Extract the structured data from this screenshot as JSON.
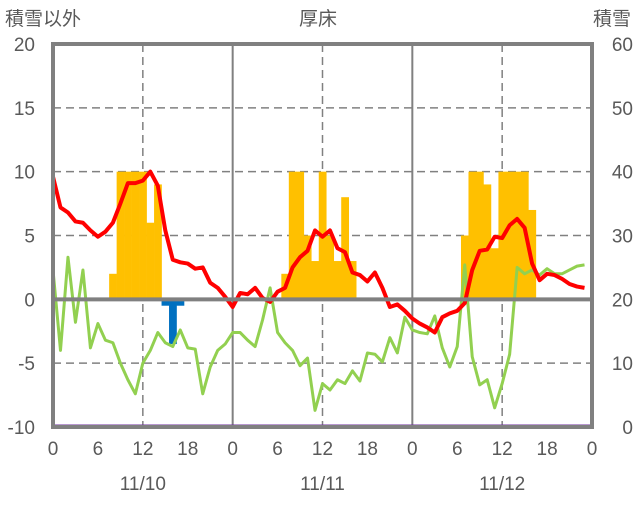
{
  "chart_data": {
    "type": "bar+line",
    "title": "厚床",
    "left_axis_label": "積雪以外",
    "right_axis_label": "積雪",
    "left_ylim": [
      -10,
      20
    ],
    "right_ylim": [
      0,
      60
    ],
    "left_ticks": [
      "20",
      "15",
      "10",
      "5",
      "0",
      "-5",
      "-10"
    ],
    "right_ticks": [
      "60",
      "50",
      "40",
      "30",
      "20",
      "10",
      "0"
    ],
    "x_tick_labels": [
      "0",
      "6",
      "12",
      "18",
      "0",
      "6",
      "12",
      "18",
      "0",
      "6",
      "12",
      "18",
      "0"
    ],
    "date_labels": [
      "11/10",
      "11/11",
      "11/12"
    ],
    "x_unit": "hours from 11/10 0:00",
    "grid": "horizontal dashed every 5; vertical dashed at 12h, solid at 0h",
    "series": [
      {
        "name": "orange-bars",
        "axis": "left",
        "type": "bar",
        "color": "#FFC000",
        "hours": [
          8,
          9,
          10,
          11,
          12,
          13,
          14,
          31,
          32,
          33,
          34,
          35,
          36,
          37,
          38,
          39,
          40,
          55,
          56,
          57,
          58,
          59,
          60,
          61,
          62,
          63,
          64
        ],
        "values": [
          2,
          10,
          10,
          10,
          10,
          6,
          9,
          2,
          10,
          10,
          5,
          3,
          10,
          5,
          3,
          8,
          3,
          5,
          10,
          10,
          9,
          4,
          10,
          10,
          10,
          10,
          7
        ]
      },
      {
        "name": "blue-bars",
        "axis": "left",
        "type": "bar",
        "color": "#0070C0",
        "hours": [
          0,
          15,
          16,
          17
        ],
        "values": [
          -0.5,
          -0.5,
          -3.5,
          -0.5
        ]
      },
      {
        "name": "green-line",
        "axis": "left",
        "type": "line",
        "color": "#92D050",
        "values": [
          2.3,
          -4.0,
          3.3,
          -1.8,
          2.3,
          -3.8,
          -1.9,
          -3.2,
          -3.4,
          -5.0,
          -6.3,
          -7.4,
          -5.0,
          -4.0,
          -2.6,
          -3.4,
          -3.7,
          -2.4,
          -3.8,
          -3.9,
          -7.4,
          -5.3,
          -4.0,
          -3.5,
          -2.6,
          -2.6,
          -3.2,
          -3.7,
          -1.6,
          0.9,
          -2.6,
          -3.4,
          -4.0,
          -5.2,
          -4.6,
          -8.7,
          -6.6,
          -7.1,
          -6.3,
          -6.6,
          -5.6,
          -6.4,
          -4.2,
          -4.3,
          -4.9,
          -3.0,
          -4.2,
          -1.4,
          -2.4,
          -2.6,
          -2.7,
          -1.3,
          -3.8,
          -5.3,
          -3.7,
          2.7,
          -4.5,
          -6.7,
          -6.3,
          -8.5,
          -6.6,
          -4.3,
          2.5,
          2.0,
          2.3,
          1.9,
          2.4,
          2.0,
          2.0,
          2.3,
          2.6,
          2.7
        ]
      },
      {
        "name": "red-line-snow-depth",
        "axis": "right",
        "type": "line",
        "color": "#FF0000",
        "values": [
          39.2,
          34.4,
          33.6,
          32.2,
          32,
          30.8,
          29.8,
          30.6,
          32,
          35,
          38.2,
          38.2,
          38.6,
          40,
          37.8,
          30.8,
          26.2,
          25.8,
          25.6,
          24.8,
          25,
          22.6,
          21.8,
          20.4,
          18.8,
          21,
          20.8,
          21.8,
          20.2,
          19.6,
          21.2,
          21.8,
          25,
          26.6,
          27.6,
          30.8,
          29.8,
          30.8,
          28,
          27.4,
          24.2,
          23.8,
          22.8,
          24.2,
          21.8,
          18.8,
          19.2,
          18.2,
          17,
          16.2,
          15.6,
          14.8,
          17.2,
          17.8,
          18.2,
          19.4,
          24.6,
          27.6,
          27.8,
          29.8,
          29.6,
          31.6,
          32.6,
          31.2,
          25.6,
          23,
          24,
          23.8,
          23.2,
          22.4,
          22,
          21.8
        ]
      },
      {
        "name": "purple-line",
        "axis": "right",
        "type": "line",
        "color": "#7030A0",
        "constant": 0
      }
    ]
  }
}
